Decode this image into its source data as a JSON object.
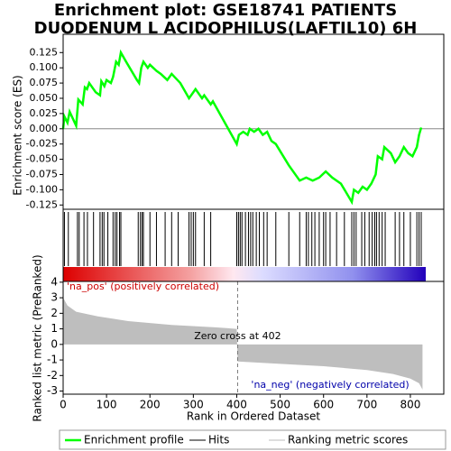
{
  "chart_data": [
    {
      "type": "line",
      "title": "Enrichment plot: GSE18741 PATIENTS",
      "subtitle": "DUODENUM L ACIDOPHILUS(LAFTIL10) 6H",
      "ylabel": "Enrichment score (ES)",
      "xlim": [
        0,
        877
      ],
      "ylim": [
        -0.132,
        0.155
      ],
      "yticks": [
        0.125,
        {
          "value": 0.1,
          "label": "0.100"
        },
        0.075,
        {
          "value": 0.05,
          "label": "0.050"
        },
        0.025,
        {
          "value": 0,
          "label": "0.000"
        },
        -0.025,
        {
          "value": -0.05,
          "label": "-0.050"
        },
        -0.075,
        {
          "value": -0.1,
          "label": "-0.100"
        },
        -0.125
      ],
      "series": [
        {
          "name": "Enrichment profile",
          "color": "#00ff00",
          "x": [
            0,
            3,
            10,
            15,
            30,
            35,
            45,
            50,
            55,
            60,
            75,
            85,
            88,
            95,
            100,
            110,
            115,
            122,
            128,
            133,
            145,
            170,
            175,
            180,
            185,
            195,
            200,
            215,
            225,
            240,
            250,
            270,
            290,
            300,
            305,
            320,
            325,
            340,
            345,
            400,
            405,
            415,
            425,
            430,
            440,
            450,
            460,
            470,
            480,
            490,
            520,
            545,
            560,
            575,
            590,
            605,
            620,
            640,
            665,
            670,
            680,
            690,
            700,
            710,
            720,
            725,
            735,
            740,
            755,
            765,
            775,
            785,
            795,
            805,
            815,
            820,
            825
          ],
          "values": [
            0,
            0.02,
            0.01,
            0.028,
            0.005,
            0.048,
            0.04,
            0.068,
            0.065,
            0.075,
            0.06,
            0.055,
            0.078,
            0.07,
            0.08,
            0.075,
            0.085,
            0.11,
            0.105,
            0.125,
            0.11,
            0.08,
            0.075,
            0.1,
            0.11,
            0.1,
            0.105,
            0.095,
            0.09,
            0.08,
            0.09,
            0.075,
            0.05,
            0.06,
            0.065,
            0.05,
            0.055,
            0.04,
            0.045,
            -0.025,
            -0.01,
            -0.005,
            -0.01,
            0,
            -0.005,
            0,
            -0.01,
            -0.005,
            -0.02,
            -0.025,
            -0.06,
            -0.085,
            -0.08,
            -0.085,
            -0.08,
            -0.07,
            -0.08,
            -0.09,
            -0.12,
            -0.1,
            -0.105,
            -0.095,
            -0.1,
            -0.09,
            -0.075,
            -0.045,
            -0.05,
            -0.03,
            -0.04,
            -0.055,
            -0.045,
            -0.03,
            -0.04,
            -0.045,
            -0.03,
            -0.01,
            0.002
          ]
        }
      ]
    },
    {
      "type": "rug",
      "xlim": [
        0,
        877
      ],
      "series": [
        {
          "name": "Hits",
          "color": "#000000",
          "x": [
            3,
            12,
            33,
            37,
            48,
            56,
            70,
            85,
            90,
            94,
            103,
            115,
            120,
            124,
            130,
            133,
            173,
            178,
            182,
            185,
            200,
            215,
            235,
            250,
            265,
            290,
            295,
            300,
            305,
            325,
            340,
            400,
            404,
            408,
            412,
            420,
            427,
            432,
            437,
            445,
            452,
            462,
            470,
            490,
            520,
            545,
            560,
            565,
            573,
            580,
            590,
            600,
            605,
            615,
            630,
            648,
            665,
            670,
            675,
            688,
            695,
            705,
            712,
            718,
            722,
            728,
            735,
            742,
            765,
            775,
            785,
            800,
            815,
            820,
            825
          ]
        }
      ]
    },
    {
      "type": "area",
      "xlabel": "Rank in Ordered Dataset",
      "ylabel": "Ranked list metric (PreRanked)",
      "xlim": [
        0,
        877
      ],
      "ylim": [
        -3.2,
        4.05
      ],
      "xticks": [
        0,
        100,
        200,
        300,
        400,
        500,
        600,
        700,
        800
      ],
      "yticks": [
        4,
        3,
        2,
        1,
        0,
        -1,
        -2,
        -3
      ],
      "zero_cross": 402,
      "annotations": [
        "'na_pos' (positively correlated)",
        "Zero cross at 402",
        "'na_neg' (negatively correlated)"
      ],
      "series": [
        {
          "name": "Ranking metric scores",
          "color": "#bebebe",
          "x": [
            0,
            10,
            30,
            80,
            150,
            250,
            350,
            400,
            402,
            500,
            600,
            700,
            760,
            800,
            820,
            828
          ],
          "values": [
            3.0,
            2.5,
            2.1,
            1.8,
            1.5,
            1.25,
            1.1,
            1.0,
            -1.1,
            -1.25,
            -1.4,
            -1.65,
            -1.9,
            -2.2,
            -2.5,
            -2.9
          ]
        }
      ]
    }
  ]
}
